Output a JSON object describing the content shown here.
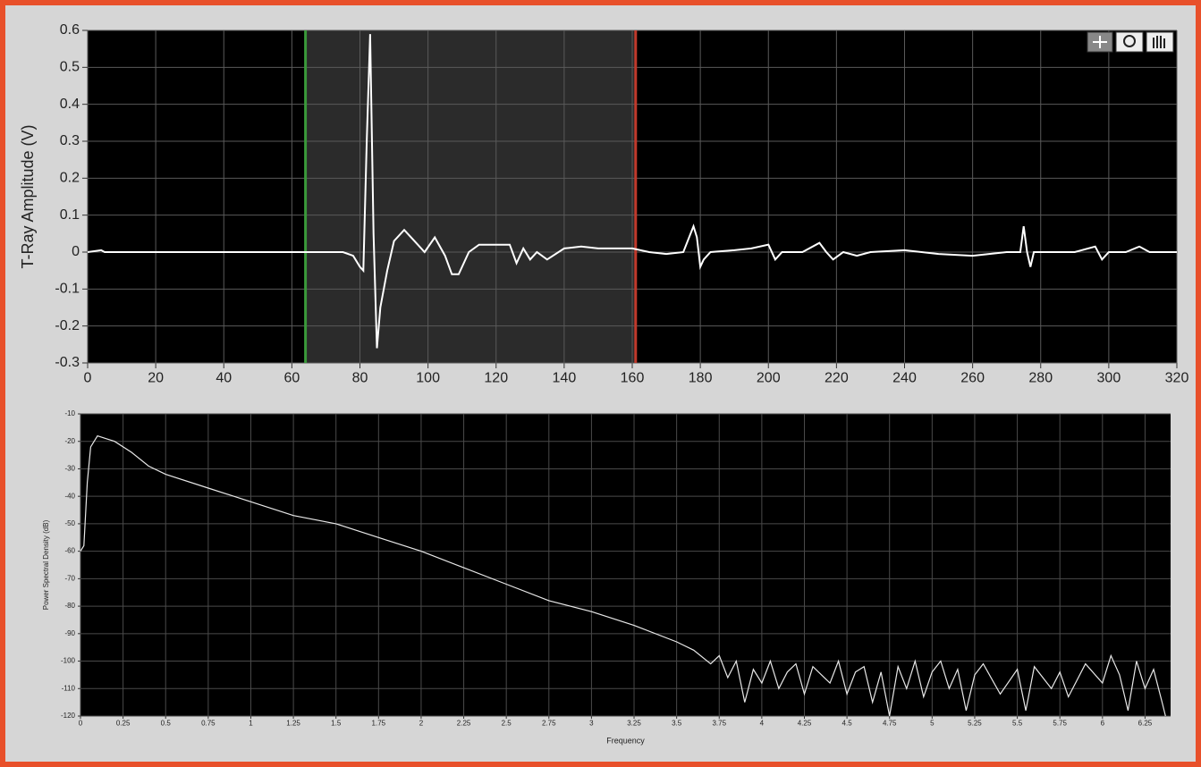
{
  "chart_data": [
    {
      "type": "line",
      "ylabel": "T-Ray Amplitude (V)",
      "xlim": [
        0,
        320
      ],
      "xticks": [
        0,
        20,
        40,
        60,
        80,
        100,
        120,
        140,
        160,
        180,
        200,
        220,
        240,
        260,
        280,
        300,
        320
      ],
      "ylim": [
        -0.3,
        0.6
      ],
      "yticks": [
        -0.3,
        -0.2,
        -0.1,
        0,
        0.1,
        0.2,
        0.3,
        0.4,
        0.5,
        0.6
      ],
      "grid": true,
      "cursors": [
        {
          "color": "#3a9a3a",
          "value": 64
        },
        {
          "color": "#c0392b",
          "value": 161
        }
      ],
      "series": [
        {
          "color": "#ffffff",
          "x": [
            0,
            4,
            5,
            75,
            78,
            80,
            81,
            82,
            83,
            84,
            85,
            86,
            88,
            90,
            93,
            96,
            99,
            102,
            105,
            107,
            109,
            112,
            115,
            118,
            121,
            124,
            126,
            128,
            130,
            132,
            135,
            140,
            145,
            150,
            155,
            160,
            165,
            170,
            175,
            178,
            179,
            180,
            181,
            183,
            190,
            195,
            200,
            202,
            204,
            210,
            215,
            217,
            219,
            222,
            226,
            230,
            240,
            250,
            260,
            270,
            274,
            275,
            276,
            277,
            278,
            285,
            290,
            296,
            298,
            300,
            305,
            309,
            312,
            315,
            320
          ],
          "values": [
            0,
            0.005,
            0,
            0,
            -0.01,
            -0.04,
            -0.05,
            0.3,
            0.59,
            0.05,
            -0.26,
            -0.15,
            -0.05,
            0.03,
            0.06,
            0.03,
            0.0,
            0.04,
            -0.01,
            -0.06,
            -0.06,
            0.0,
            0.02,
            0.02,
            0.02,
            0.02,
            -0.03,
            0.01,
            -0.02,
            0.0,
            -0.02,
            0.01,
            0.015,
            0.01,
            0.01,
            0.01,
            0.0,
            -0.005,
            0.0,
            0.07,
            0.04,
            -0.04,
            -0.02,
            0.0,
            0.005,
            0.01,
            0.02,
            -0.02,
            0.0,
            0.0,
            0.025,
            0.0,
            -0.02,
            0.0,
            -0.01,
            0.0,
            0.005,
            -0.005,
            -0.01,
            0.0,
            0.0,
            0.07,
            0.0,
            -0.04,
            0.0,
            0.0,
            0.0,
            0.015,
            -0.02,
            0.0,
            0.0,
            0.015,
            0.0,
            0.0,
            0.0
          ]
        }
      ]
    },
    {
      "type": "line",
      "ylabel": "Power Spectral Density (dB)",
      "xlabel": "Frequency",
      "xlim": [
        0,
        6.4
      ],
      "xticks": [
        0,
        0.25,
        0.5,
        0.75,
        1,
        1.25,
        1.5,
        1.75,
        2,
        2.25,
        2.5,
        2.75,
        3,
        3.25,
        3.5,
        3.75,
        4,
        4.25,
        4.5,
        4.75,
        5,
        5.25,
        5.5,
        5.75,
        6,
        6.25
      ],
      "ylim": [
        -120,
        -10
      ],
      "yticks": [
        -120,
        -110,
        -100,
        -90,
        -80,
        -70,
        -60,
        -50,
        -40,
        -30,
        -20,
        -10
      ],
      "grid": true,
      "series": [
        {
          "color": "#e8e8e8",
          "x": [
            0,
            0.02,
            0.04,
            0.06,
            0.1,
            0.15,
            0.2,
            0.3,
            0.4,
            0.5,
            0.75,
            1,
            1.25,
            1.5,
            1.75,
            2,
            2.25,
            2.5,
            2.75,
            3,
            3.25,
            3.5,
            3.6,
            3.7,
            3.75,
            3.8,
            3.85,
            3.9,
            3.95,
            4.0,
            4.05,
            4.1,
            4.15,
            4.2,
            4.25,
            4.3,
            4.4,
            4.45,
            4.5,
            4.55,
            4.6,
            4.65,
            4.7,
            4.75,
            4.8,
            4.85,
            4.9,
            4.95,
            5.0,
            5.05,
            5.1,
            5.15,
            5.2,
            5.25,
            5.3,
            5.4,
            5.5,
            5.55,
            5.6,
            5.7,
            5.75,
            5.8,
            5.9,
            6.0,
            6.05,
            6.1,
            6.15,
            6.2,
            6.25,
            6.3,
            6.35,
            6.37
          ],
          "values": [
            -60,
            -58,
            -35,
            -22,
            -18,
            -19,
            -20,
            -24,
            -29,
            -32,
            -37,
            -42,
            -47,
            -50,
            -55,
            -60,
            -66,
            -72,
            -78,
            -82,
            -87,
            -93,
            -96,
            -101,
            -98,
            -106,
            -100,
            -115,
            -103,
            -108,
            -100,
            -110,
            -104,
            -101,
            -112,
            -102,
            -108,
            -100,
            -112,
            -104,
            -102,
            -115,
            -104,
            -120,
            -102,
            -110,
            -100,
            -113,
            -104,
            -100,
            -110,
            -103,
            -118,
            -105,
            -101,
            -112,
            -103,
            -118,
            -102,
            -110,
            -104,
            -113,
            -101,
            -108,
            -98,
            -105,
            -118,
            -100,
            -110,
            -103,
            -115,
            -120
          ]
        }
      ]
    }
  ]
}
